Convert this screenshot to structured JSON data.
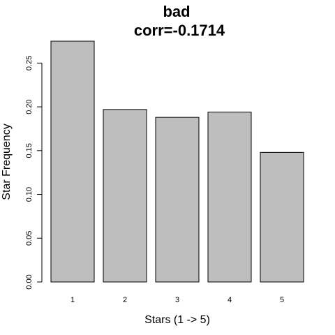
{
  "chart_data": {
    "type": "bar",
    "title": "bad",
    "subtitle": "corr=-0.1714",
    "xlabel": "Stars (1 -> 5)",
    "ylabel": "Star Frequency",
    "categories": [
      "1",
      "2",
      "3",
      "4",
      "5"
    ],
    "values": [
      0.275,
      0.197,
      0.188,
      0.194,
      0.148
    ],
    "yticks": [
      0.0,
      0.05,
      0.1,
      0.15,
      0.2,
      0.25
    ],
    "ytick_labels": [
      "0.00",
      "0.05",
      "0.10",
      "0.15",
      "0.20",
      "0.25"
    ],
    "ylim": [
      0,
      0.275
    ],
    "grid": false,
    "legend": "none",
    "bar_color": "#bebebe",
    "bar_border_color": "#000000"
  }
}
